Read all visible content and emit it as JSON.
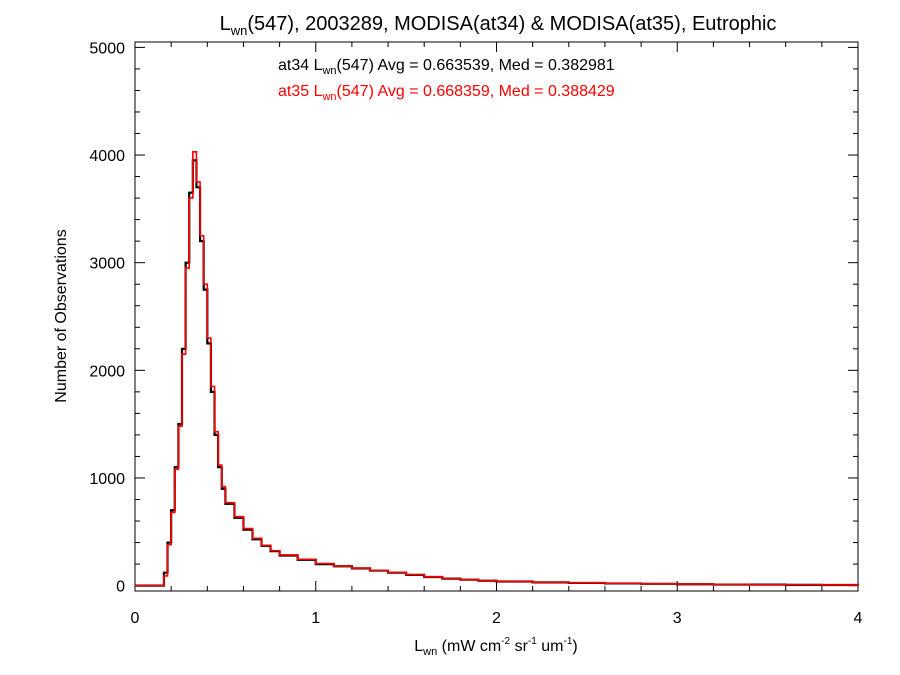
{
  "chart_data": {
    "type": "histogram",
    "title": {
      "main": "L",
      "sub": "wn",
      "rest": "(547), 2003289, MODISA(at34) & MODISA(at35), Eutrophic"
    },
    "xlabel": {
      "main": "L",
      "sub": "wn",
      "pre": " (mW cm",
      "sup1": "-2",
      "mid1": " sr",
      "sup2": "-1",
      "mid2": " um",
      "sup3": "-1",
      "post": ")"
    },
    "ylabel": "Number of Observations",
    "xlim": [
      0,
      4
    ],
    "ylim": [
      -50,
      5050
    ],
    "x_ticks": [
      0,
      1,
      2,
      3,
      4
    ],
    "x_tick_labels": [
      "0",
      "1",
      "2",
      "3",
      "4"
    ],
    "y_ticks": [
      0,
      1000,
      2000,
      3000,
      4000,
      5000
    ],
    "y_tick_labels": [
      "0",
      "1000",
      "2000",
      "3000",
      "4000",
      "5000"
    ],
    "grid": false,
    "annotations": [
      {
        "prefix": "at34 L",
        "sub": "wn",
        "suffix": "(547) Avg = 0.663539, Med = 0.382981",
        "color": "#000000"
      },
      {
        "prefix": "at35 L",
        "sub": "wn",
        "suffix": "(547) Avg = 0.668359, Med = 0.388429",
        "color": "#ff0000"
      }
    ],
    "series": [
      {
        "name": "at34",
        "color": "#000000",
        "points": [
          [
            0.0,
            0
          ],
          [
            0.14,
            0
          ],
          [
            0.16,
            120
          ],
          [
            0.18,
            400
          ],
          [
            0.2,
            700
          ],
          [
            0.22,
            1100
          ],
          [
            0.24,
            1500
          ],
          [
            0.26,
            2200
          ],
          [
            0.28,
            3000
          ],
          [
            0.3,
            3650
          ],
          [
            0.32,
            3950
          ],
          [
            0.34,
            3700
          ],
          [
            0.36,
            3200
          ],
          [
            0.38,
            2750
          ],
          [
            0.4,
            2250
          ],
          [
            0.42,
            1800
          ],
          [
            0.44,
            1400
          ],
          [
            0.46,
            1100
          ],
          [
            0.48,
            900
          ],
          [
            0.5,
            760
          ],
          [
            0.55,
            630
          ],
          [
            0.6,
            520
          ],
          [
            0.65,
            430
          ],
          [
            0.7,
            370
          ],
          [
            0.75,
            320
          ],
          [
            0.8,
            280
          ],
          [
            0.9,
            240
          ],
          [
            1.0,
            200
          ],
          [
            1.1,
            180
          ],
          [
            1.2,
            160
          ],
          [
            1.3,
            140
          ],
          [
            1.4,
            120
          ],
          [
            1.5,
            100
          ],
          [
            1.6,
            80
          ],
          [
            1.7,
            65
          ],
          [
            1.8,
            55
          ],
          [
            1.9,
            45
          ],
          [
            2.0,
            38
          ],
          [
            2.2,
            30
          ],
          [
            2.4,
            25
          ],
          [
            2.6,
            20
          ],
          [
            2.8,
            17
          ],
          [
            3.0,
            13
          ],
          [
            3.2,
            10
          ],
          [
            3.4,
            9
          ],
          [
            3.6,
            7
          ],
          [
            3.8,
            6
          ],
          [
            4.0,
            5
          ]
        ]
      },
      {
        "name": "at35",
        "color": "#ff0000",
        "points": [
          [
            0.0,
            0
          ],
          [
            0.14,
            0
          ],
          [
            0.16,
            90
          ],
          [
            0.18,
            380
          ],
          [
            0.2,
            680
          ],
          [
            0.22,
            1080
          ],
          [
            0.24,
            1480
          ],
          [
            0.26,
            2150
          ],
          [
            0.28,
            2950
          ],
          [
            0.3,
            3600
          ],
          [
            0.32,
            4030
          ],
          [
            0.34,
            3750
          ],
          [
            0.36,
            3250
          ],
          [
            0.38,
            2800
          ],
          [
            0.4,
            2300
          ],
          [
            0.42,
            1850
          ],
          [
            0.44,
            1430
          ],
          [
            0.46,
            1120
          ],
          [
            0.48,
            920
          ],
          [
            0.5,
            770
          ],
          [
            0.55,
            640
          ],
          [
            0.6,
            530
          ],
          [
            0.65,
            440
          ],
          [
            0.7,
            375
          ],
          [
            0.75,
            325
          ],
          [
            0.8,
            285
          ],
          [
            0.9,
            245
          ],
          [
            1.0,
            205
          ],
          [
            1.1,
            182
          ],
          [
            1.2,
            162
          ],
          [
            1.3,
            142
          ],
          [
            1.4,
            122
          ],
          [
            1.5,
            102
          ],
          [
            1.6,
            82
          ],
          [
            1.7,
            66
          ],
          [
            1.8,
            56
          ],
          [
            1.9,
            46
          ],
          [
            2.0,
            39
          ],
          [
            2.2,
            31
          ],
          [
            2.4,
            26
          ],
          [
            2.6,
            21
          ],
          [
            2.8,
            17
          ],
          [
            3.0,
            14
          ],
          [
            3.2,
            11
          ],
          [
            3.4,
            9
          ],
          [
            3.6,
            8
          ],
          [
            3.8,
            6
          ],
          [
            4.0,
            5
          ]
        ]
      }
    ]
  }
}
